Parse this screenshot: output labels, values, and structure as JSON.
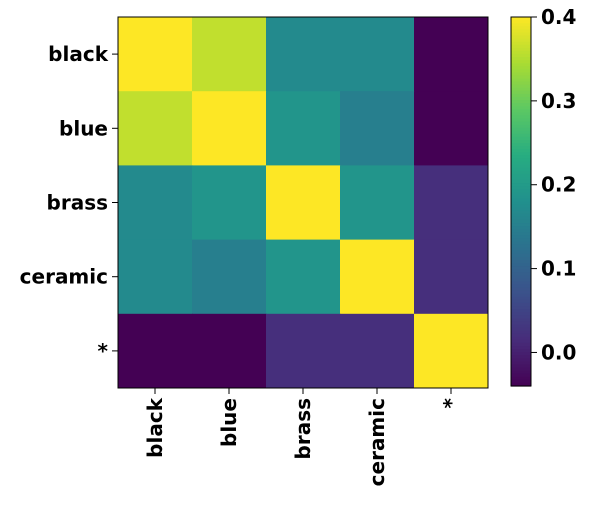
{
  "chart_data": {
    "type": "heatmap",
    "title": "",
    "xlabel": "",
    "ylabel": "",
    "categories": [
      "black",
      "blue",
      "brass",
      "ceramic",
      "*"
    ],
    "values": [
      [
        0.4,
        0.36,
        0.17,
        0.17,
        -0.04
      ],
      [
        0.36,
        0.4,
        0.19,
        0.15,
        -0.04
      ],
      [
        0.17,
        0.19,
        0.4,
        0.19,
        0.02
      ],
      [
        0.17,
        0.15,
        0.19,
        0.4,
        0.02
      ],
      [
        -0.04,
        -0.04,
        0.02,
        0.02,
        0.4
      ]
    ],
    "colormap": "viridis",
    "colorbar": {
      "vmin": -0.04,
      "vmax": 0.4,
      "ticks": [
        0.0,
        0.1,
        0.2,
        0.3,
        0.4
      ],
      "tick_labels": [
        "0.0",
        "0.1",
        "0.2",
        "0.3",
        "0.4"
      ]
    },
    "grid": false
  }
}
